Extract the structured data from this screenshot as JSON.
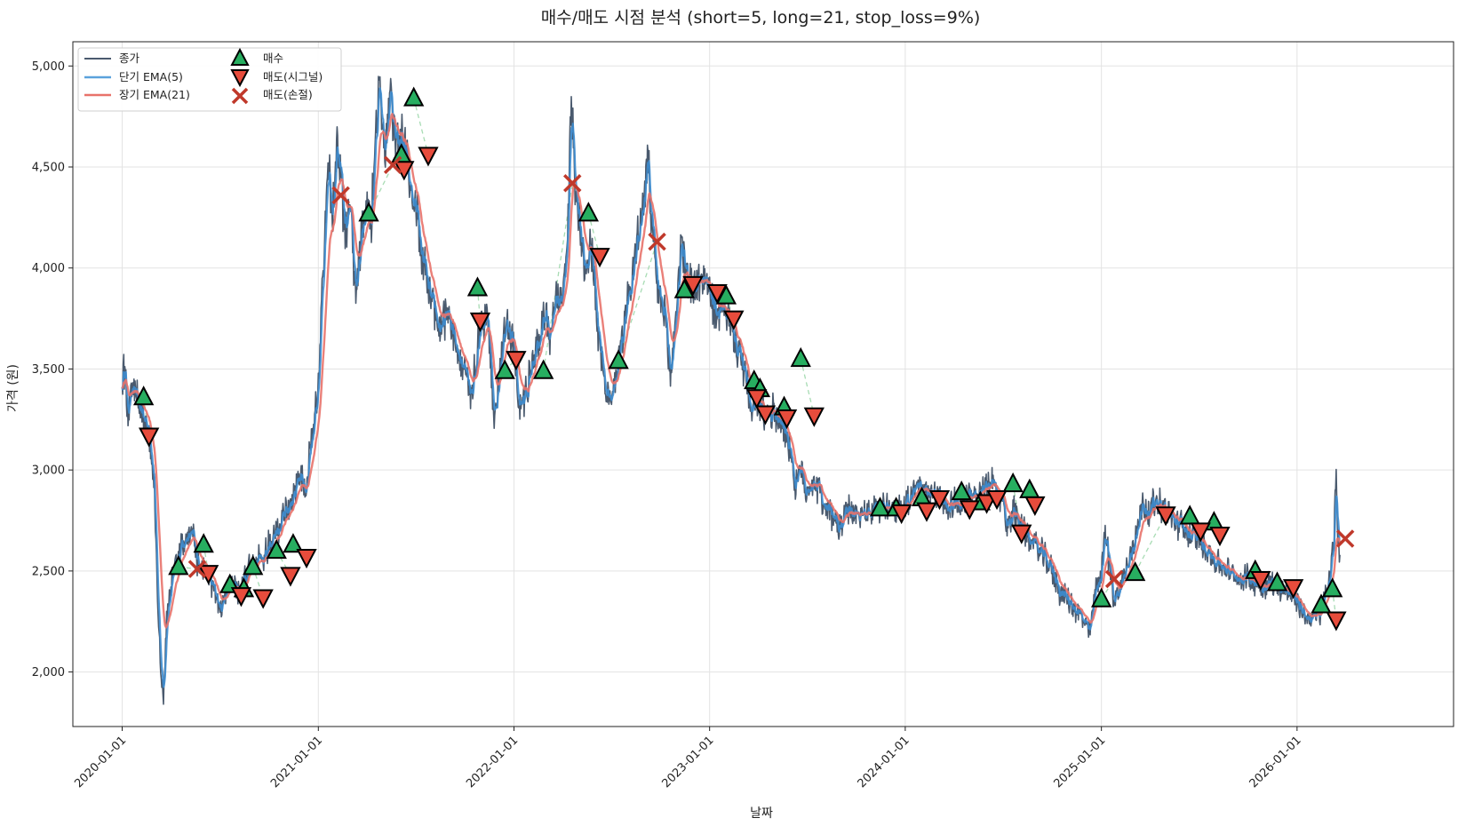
{
  "chart_data": {
    "type": "line",
    "title": "매수/매도 시점 분석 (short=5, long=21, stop_loss=9%)",
    "xlabel": "날짜",
    "ylabel": "가격 (원)",
    "xlim": [
      "2019-10-01",
      "2026-10-20"
    ],
    "ylim": [
      1730,
      5120
    ],
    "grid": true,
    "legend_position": "top-left",
    "x_ticks": [
      "2020-01-01",
      "2021-01-01",
      "2022-01-01",
      "2023-01-01",
      "2024-01-01",
      "2025-01-01",
      "2026-01-01"
    ],
    "y_ticks": [
      {
        "value": 2000,
        "label": "2,000"
      },
      {
        "value": 2500,
        "label": "2,500"
      },
      {
        "value": 3000,
        "label": "3,000"
      },
      {
        "value": 3500,
        "label": "3,500"
      },
      {
        "value": 4000,
        "label": "4,000"
      },
      {
        "value": 4500,
        "label": "4,500"
      },
      {
        "value": 5000,
        "label": "5,000"
      }
    ],
    "colors": {
      "close": "#4a5a6e",
      "short_ema": "#3d8ccf",
      "long_ema": "#e8726a",
      "buy": "#27ae60",
      "sell": "#e74c3c",
      "stop": "#c0392b",
      "trade_link": "#a8dcb4"
    },
    "close_anchors": [
      [
        "2020-01-01",
        3450
      ],
      [
        "2020-01-06",
        3510
      ],
      [
        "2020-01-12",
        3280
      ],
      [
        "2020-01-20",
        3440
      ],
      [
        "2020-02-01",
        3320
      ],
      [
        "2020-02-10",
        3250
      ],
      [
        "2020-02-20",
        3180
      ],
      [
        "2020-03-01",
        2950
      ],
      [
        "2020-03-08",
        2300
      ],
      [
        "2020-03-14",
        1980
      ],
      [
        "2020-03-18",
        1880
      ],
      [
        "2020-03-25",
        2300
      ],
      [
        "2020-04-05",
        2500
      ],
      [
        "2020-04-20",
        2620
      ],
      [
        "2020-05-01",
        2650
      ],
      [
        "2020-05-12",
        2720
      ],
      [
        "2020-05-20",
        2540
      ],
      [
        "2020-06-05",
        2500
      ],
      [
        "2020-06-20",
        2400
      ],
      [
        "2020-07-05",
        2300
      ],
      [
        "2020-07-20",
        2450
      ],
      [
        "2020-08-05",
        2400
      ],
      [
        "2020-08-20",
        2480
      ],
      [
        "2020-09-05",
        2580
      ],
      [
        "2020-09-20",
        2560
      ],
      [
        "2020-10-05",
        2650
      ],
      [
        "2020-10-20",
        2700
      ],
      [
        "2020-11-05",
        2820
      ],
      [
        "2020-11-20",
        2900
      ],
      [
        "2020-11-28",
        3020
      ],
      [
        "2020-12-05",
        2880
      ],
      [
        "2020-12-15",
        3050
      ],
      [
        "2021-01-01",
        3420
      ],
      [
        "2021-01-10",
        4000
      ],
      [
        "2021-01-20",
        4550
      ],
      [
        "2021-01-28",
        4250
      ],
      [
        "2021-02-05",
        4650
      ],
      [
        "2021-02-12",
        4450
      ],
      [
        "2021-02-20",
        4150
      ],
      [
        "2021-03-01",
        4400
      ],
      [
        "2021-03-10",
        3880
      ],
      [
        "2021-03-20",
        4100
      ],
      [
        "2021-04-01",
        4300
      ],
      [
        "2021-04-10",
        4250
      ],
      [
        "2021-04-18",
        4650
      ],
      [
        "2021-04-25",
        4900
      ],
      [
        "2021-05-05",
        4550
      ],
      [
        "2021-05-15",
        4950
      ],
      [
        "2021-05-25",
        4600
      ],
      [
        "2021-06-05",
        4650
      ],
      [
        "2021-06-15",
        4550
      ],
      [
        "2021-07-01",
        4300
      ],
      [
        "2021-07-15",
        4050
      ],
      [
        "2021-08-01",
        3850
      ],
      [
        "2021-08-15",
        3700
      ],
      [
        "2021-09-01",
        3800
      ],
      [
        "2021-09-15",
        3560
      ],
      [
        "2021-10-01",
        3480
      ],
      [
        "2021-10-10",
        3380
      ],
      [
        "2021-10-20",
        3480
      ],
      [
        "2021-11-01",
        3750
      ],
      [
        "2021-11-15",
        3700
      ],
      [
        "2021-11-25",
        3200
      ],
      [
        "2021-12-10",
        3650
      ],
      [
        "2021-12-20",
        3750
      ],
      [
        "2022-01-01",
        3600
      ],
      [
        "2022-01-10",
        3300
      ],
      [
        "2022-01-20",
        3350
      ],
      [
        "2022-02-01",
        3500
      ],
      [
        "2022-02-15",
        3620
      ],
      [
        "2022-03-01",
        3800
      ],
      [
        "2022-03-10",
        3650
      ],
      [
        "2022-03-20",
        3900
      ],
      [
        "2022-04-01",
        3800
      ],
      [
        "2022-04-10",
        4100
      ],
      [
        "2022-04-18",
        4880
      ],
      [
        "2022-04-25",
        4400
      ],
      [
        "2022-05-05",
        4200
      ],
      [
        "2022-05-15",
        4000
      ],
      [
        "2022-05-25",
        4150
      ],
      [
        "2022-06-05",
        3700
      ],
      [
        "2022-06-20",
        3450
      ],
      [
        "2022-07-01",
        3300
      ],
      [
        "2022-07-15",
        3550
      ],
      [
        "2022-08-01",
        3850
      ],
      [
        "2022-08-15",
        4050
      ],
      [
        "2022-09-01",
        4350
      ],
      [
        "2022-09-08",
        4550
      ],
      [
        "2022-09-15",
        4200
      ],
      [
        "2022-09-25",
        3900
      ],
      [
        "2022-10-10",
        3750
      ],
      [
        "2022-10-20",
        3450
      ],
      [
        "2022-11-01",
        3850
      ],
      [
        "2022-11-10",
        4150
      ],
      [
        "2022-11-20",
        3950
      ],
      [
        "2022-12-05",
        3900
      ],
      [
        "2022-12-20",
        3950
      ],
      [
        "2023-01-01",
        3900
      ],
      [
        "2023-01-15",
        3750
      ],
      [
        "2023-02-01",
        3800
      ],
      [
        "2023-02-15",
        3650
      ],
      [
        "2023-03-01",
        3550
      ],
      [
        "2023-03-10",
        3450
      ],
      [
        "2023-03-20",
        3250
      ],
      [
        "2023-04-01",
        3350
      ],
      [
        "2023-04-15",
        3250
      ],
      [
        "2023-05-01",
        3300
      ],
      [
        "2023-05-15",
        3250
      ],
      [
        "2023-06-01",
        3100
      ],
      [
        "2023-06-10",
        2900
      ],
      [
        "2023-06-20",
        3000
      ],
      [
        "2023-07-01",
        2900
      ],
      [
        "2023-07-15",
        2950
      ],
      [
        "2023-08-01",
        2850
      ],
      [
        "2023-08-15",
        2780
      ],
      [
        "2023-09-01",
        2720
      ],
      [
        "2023-09-15",
        2800
      ],
      [
        "2023-10-01",
        2780
      ],
      [
        "2023-10-15",
        2780
      ],
      [
        "2023-11-01",
        2800
      ],
      [
        "2023-11-15",
        2810
      ],
      [
        "2023-12-01",
        2830
      ],
      [
        "2023-12-15",
        2800
      ],
      [
        "2024-01-01",
        2840
      ],
      [
        "2024-01-15",
        2900
      ],
      [
        "2024-02-01",
        2920
      ],
      [
        "2024-02-15",
        2850
      ],
      [
        "2024-03-01",
        2880
      ],
      [
        "2024-03-15",
        2820
      ],
      [
        "2024-04-01",
        2850
      ],
      [
        "2024-04-15",
        2830
      ],
      [
        "2024-05-01",
        2860
      ],
      [
        "2024-05-15",
        2880
      ],
      [
        "2024-06-01",
        2900
      ],
      [
        "2024-06-10",
        2950
      ],
      [
        "2024-06-20",
        2880
      ],
      [
        "2024-07-01",
        2850
      ],
      [
        "2024-07-10",
        2700
      ],
      [
        "2024-07-20",
        2800
      ],
      [
        "2024-08-01",
        2750
      ],
      [
        "2024-08-15",
        2680
      ],
      [
        "2024-09-01",
        2620
      ],
      [
        "2024-09-15",
        2580
      ],
      [
        "2024-10-01",
        2500
      ],
      [
        "2024-10-15",
        2400
      ],
      [
        "2024-11-01",
        2350
      ],
      [
        "2024-11-15",
        2300
      ],
      [
        "2024-12-01",
        2250
      ],
      [
        "2024-12-10",
        2180
      ],
      [
        "2024-12-20",
        2400
      ],
      [
        "2025-01-01",
        2500
      ],
      [
        "2025-01-08",
        2700
      ],
      [
        "2025-01-15",
        2550
      ],
      [
        "2025-01-25",
        2350
      ],
      [
        "2025-02-05",
        2420
      ],
      [
        "2025-02-15",
        2500
      ],
      [
        "2025-03-01",
        2620
      ],
      [
        "2025-03-10",
        2750
      ],
      [
        "2025-03-20",
        2830
      ],
      [
        "2025-04-01",
        2800
      ],
      [
        "2025-04-15",
        2850
      ],
      [
        "2025-05-01",
        2800
      ],
      [
        "2025-05-15",
        2750
      ],
      [
        "2025-06-01",
        2720
      ],
      [
        "2025-06-15",
        2680
      ],
      [
        "2025-07-01",
        2650
      ],
      [
        "2025-07-15",
        2620
      ],
      [
        "2025-08-01",
        2550
      ],
      [
        "2025-08-15",
        2520
      ],
      [
        "2025-09-01",
        2480
      ],
      [
        "2025-09-15",
        2460
      ],
      [
        "2025-10-01",
        2470
      ],
      [
        "2025-10-15",
        2450
      ],
      [
        "2025-11-01",
        2430
      ],
      [
        "2025-11-15",
        2440
      ],
      [
        "2025-12-01",
        2420
      ],
      [
        "2025-12-15",
        2400
      ],
      [
        "2026-01-01",
        2350
      ],
      [
        "2026-01-15",
        2280
      ],
      [
        "2026-02-01",
        2260
      ],
      [
        "2026-02-15",
        2300
      ],
      [
        "2026-03-01",
        2450
      ],
      [
        "2026-03-10",
        2600
      ],
      [
        "2026-03-15",
        3000
      ],
      [
        "2026-03-18",
        2700
      ],
      [
        "2026-03-22",
        2580
      ]
    ],
    "buy_signals": [
      [
        "2020-02-10",
        3360
      ],
      [
        "2020-04-15",
        2520
      ],
      [
        "2020-06-01",
        2630
      ],
      [
        "2020-07-20",
        2430
      ],
      [
        "2020-08-15",
        2410
      ],
      [
        "2020-09-01",
        2520
      ],
      [
        "2020-10-15",
        2600
      ],
      [
        "2020-11-15",
        2630
      ],
      [
        "2021-04-05",
        4270
      ],
      [
        "2021-06-05",
        4560
      ],
      [
        "2021-06-28",
        4840
      ],
      [
        "2021-10-25",
        3900
      ],
      [
        "2021-12-15",
        3490
      ],
      [
        "2022-02-25",
        3490
      ],
      [
        "2022-05-20",
        4270
      ],
      [
        "2022-07-15",
        3540
      ],
      [
        "2022-11-15",
        3890
      ],
      [
        "2023-02-01",
        3860
      ],
      [
        "2023-03-25",
        3440
      ],
      [
        "2023-04-05",
        3400
      ],
      [
        "2023-05-20",
        3310
      ],
      [
        "2023-06-20",
        3550
      ],
      [
        "2023-11-15",
        2810
      ],
      [
        "2023-12-15",
        2810
      ],
      [
        "2024-02-01",
        2860
      ],
      [
        "2024-04-15",
        2890
      ],
      [
        "2024-05-20",
        2840
      ],
      [
        "2024-07-20",
        2930
      ],
      [
        "2024-08-20",
        2900
      ],
      [
        "2025-01-01",
        2360
      ],
      [
        "2025-03-05",
        2490
      ],
      [
        "2025-06-15",
        2770
      ],
      [
        "2025-07-30",
        2740
      ],
      [
        "2025-10-15",
        2500
      ],
      [
        "2025-11-25",
        2440
      ],
      [
        "2026-02-15",
        2330
      ],
      [
        "2026-03-08",
        2410
      ]
    ],
    "sell_signals": [
      [
        "2020-02-20",
        3170
      ],
      [
        "2020-06-10",
        2490
      ],
      [
        "2020-08-10",
        2380
      ],
      [
        "2020-09-20",
        2370
      ],
      [
        "2020-11-10",
        2480
      ],
      [
        "2020-12-10",
        2570
      ],
      [
        "2021-06-10",
        4490
      ],
      [
        "2021-07-25",
        4560
      ],
      [
        "2021-10-30",
        3740
      ],
      [
        "2022-01-05",
        3550
      ],
      [
        "2022-06-10",
        4060
      ],
      [
        "2022-12-01",
        3920
      ],
      [
        "2023-01-15",
        3880
      ],
      [
        "2023-02-15",
        3750
      ],
      [
        "2023-03-30",
        3360
      ],
      [
        "2023-04-15",
        3280
      ],
      [
        "2023-05-25",
        3260
      ],
      [
        "2023-07-15",
        3270
      ],
      [
        "2023-12-25",
        2790
      ],
      [
        "2024-02-10",
        2800
      ],
      [
        "2024-03-05",
        2860
      ],
      [
        "2024-04-30",
        2810
      ],
      [
        "2024-06-01",
        2840
      ],
      [
        "2024-06-20",
        2860
      ],
      [
        "2024-08-05",
        2690
      ],
      [
        "2024-08-30",
        2830
      ],
      [
        "2025-05-01",
        2780
      ],
      [
        "2025-07-05",
        2700
      ],
      [
        "2025-08-10",
        2680
      ],
      [
        "2025-10-25",
        2460
      ],
      [
        "2025-12-25",
        2420
      ],
      [
        "2026-03-15",
        2260
      ]
    ],
    "stop_loss_signals": [
      [
        "2020-05-20",
        2510
      ],
      [
        "2021-02-12",
        4360
      ],
      [
        "2021-05-20",
        4510
      ],
      [
        "2022-04-20",
        4420
      ],
      [
        "2022-09-25",
        4130
      ],
      [
        "2025-01-25",
        2460
      ],
      [
        "2026-04-01",
        2660
      ]
    ]
  },
  "legend": {
    "items": [
      {
        "label": "종가",
        "kind": "line",
        "color": "#4a5a6e"
      },
      {
        "label": "단기 EMA(5)",
        "kind": "line",
        "color": "#5aa2dc"
      },
      {
        "label": "장기 EMA(21)",
        "kind": "line",
        "color": "#e8726a"
      },
      {
        "label": "매수",
        "kind": "buy"
      },
      {
        "label": "매도(시그널)",
        "kind": "sell"
      },
      {
        "label": "매도(손절)",
        "kind": "stop"
      }
    ]
  }
}
